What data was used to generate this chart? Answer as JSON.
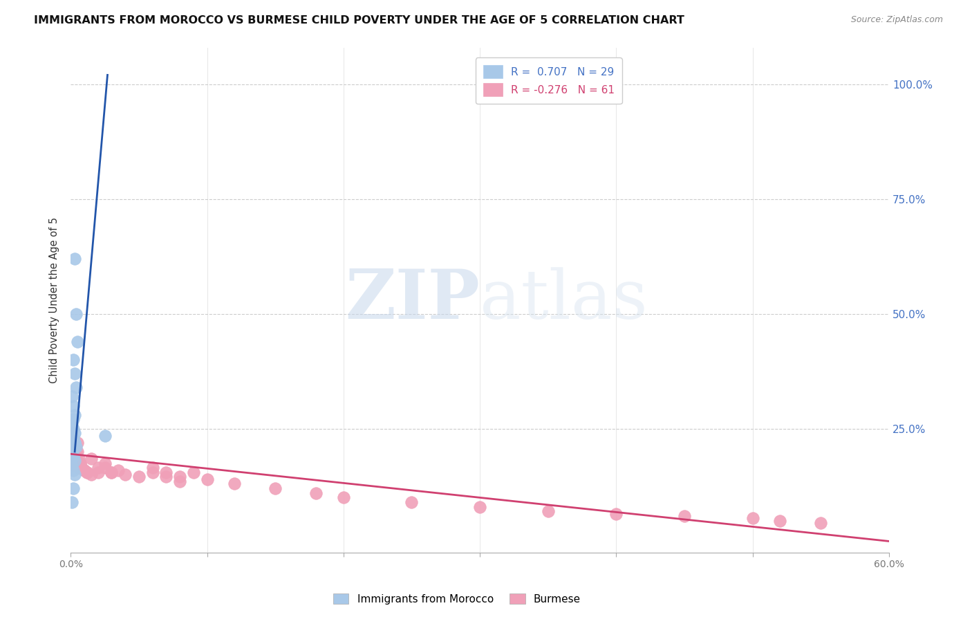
{
  "title": "IMMIGRANTS FROM MOROCCO VS BURMESE CHILD POVERTY UNDER THE AGE OF 5 CORRELATION CHART",
  "source": "Source: ZipAtlas.com",
  "ylabel": "Child Poverty Under the Age of 5",
  "ytick_labels": [
    "100.0%",
    "75.0%",
    "50.0%",
    "25.0%"
  ],
  "ytick_values": [
    1.0,
    0.75,
    0.5,
    0.25
  ],
  "xlim": [
    0.0,
    0.6
  ],
  "ylim": [
    -0.02,
    1.08
  ],
  "blue_color": "#a8c8e8",
  "blue_line_color": "#2255aa",
  "pink_color": "#f0a0b8",
  "pink_line_color": "#d04070",
  "legend_blue_r": "R =  0.707",
  "legend_blue_n": "N = 29",
  "legend_pink_r": "R = -0.276",
  "legend_pink_n": "N = 61",
  "watermark_zip": "ZIP",
  "watermark_atlas": "atlas",
  "title_fontsize": 11.5,
  "source_fontsize": 9,
  "blue_scatter_x": [
    0.003,
    0.004,
    0.005,
    0.002,
    0.003,
    0.004,
    0.001,
    0.002,
    0.003,
    0.002,
    0.001,
    0.002,
    0.003,
    0.002,
    0.003,
    0.002,
    0.001,
    0.002,
    0.003,
    0.001,
    0.002,
    0.003,
    0.004,
    0.001,
    0.002,
    0.025,
    0.003,
    0.002,
    0.001
  ],
  "blue_scatter_y": [
    0.62,
    0.5,
    0.44,
    0.4,
    0.37,
    0.34,
    0.32,
    0.3,
    0.28,
    0.27,
    0.26,
    0.25,
    0.24,
    0.23,
    0.22,
    0.21,
    0.2,
    0.19,
    0.18,
    0.17,
    0.16,
    0.22,
    0.21,
    0.2,
    0.19,
    0.235,
    0.15,
    0.12,
    0.09
  ],
  "blue_trendline_x": [
    0.003,
    0.027
  ],
  "blue_trendline_y": [
    0.2,
    1.02
  ],
  "pink_scatter_x": [
    0.001,
    0.002,
    0.001,
    0.002,
    0.003,
    0.001,
    0.002,
    0.003,
    0.004,
    0.002,
    0.001,
    0.002,
    0.003,
    0.004,
    0.003,
    0.004,
    0.005,
    0.003,
    0.004,
    0.005,
    0.006,
    0.007,
    0.005,
    0.006,
    0.007,
    0.008,
    0.01,
    0.012,
    0.015,
    0.01,
    0.012,
    0.015,
    0.02,
    0.025,
    0.03,
    0.035,
    0.02,
    0.025,
    0.03,
    0.04,
    0.05,
    0.06,
    0.07,
    0.08,
    0.06,
    0.07,
    0.08,
    0.09,
    0.1,
    0.12,
    0.15,
    0.18,
    0.2,
    0.25,
    0.3,
    0.35,
    0.4,
    0.45,
    0.5,
    0.52,
    0.55
  ],
  "pink_scatter_y": [
    0.24,
    0.22,
    0.21,
    0.2,
    0.22,
    0.2,
    0.19,
    0.21,
    0.2,
    0.185,
    0.18,
    0.175,
    0.19,
    0.18,
    0.17,
    0.18,
    0.22,
    0.19,
    0.185,
    0.2,
    0.185,
    0.175,
    0.17,
    0.165,
    0.175,
    0.165,
    0.16,
    0.155,
    0.185,
    0.16,
    0.155,
    0.15,
    0.165,
    0.175,
    0.155,
    0.16,
    0.155,
    0.165,
    0.155,
    0.15,
    0.145,
    0.165,
    0.155,
    0.145,
    0.155,
    0.145,
    0.135,
    0.155,
    0.14,
    0.13,
    0.12,
    0.11,
    0.1,
    0.09,
    0.08,
    0.07,
    0.065,
    0.06,
    0.055,
    0.05,
    0.045
  ],
  "pink_trendline_x": [
    0.0,
    0.6
  ],
  "pink_trendline_y": [
    0.195,
    0.005
  ]
}
